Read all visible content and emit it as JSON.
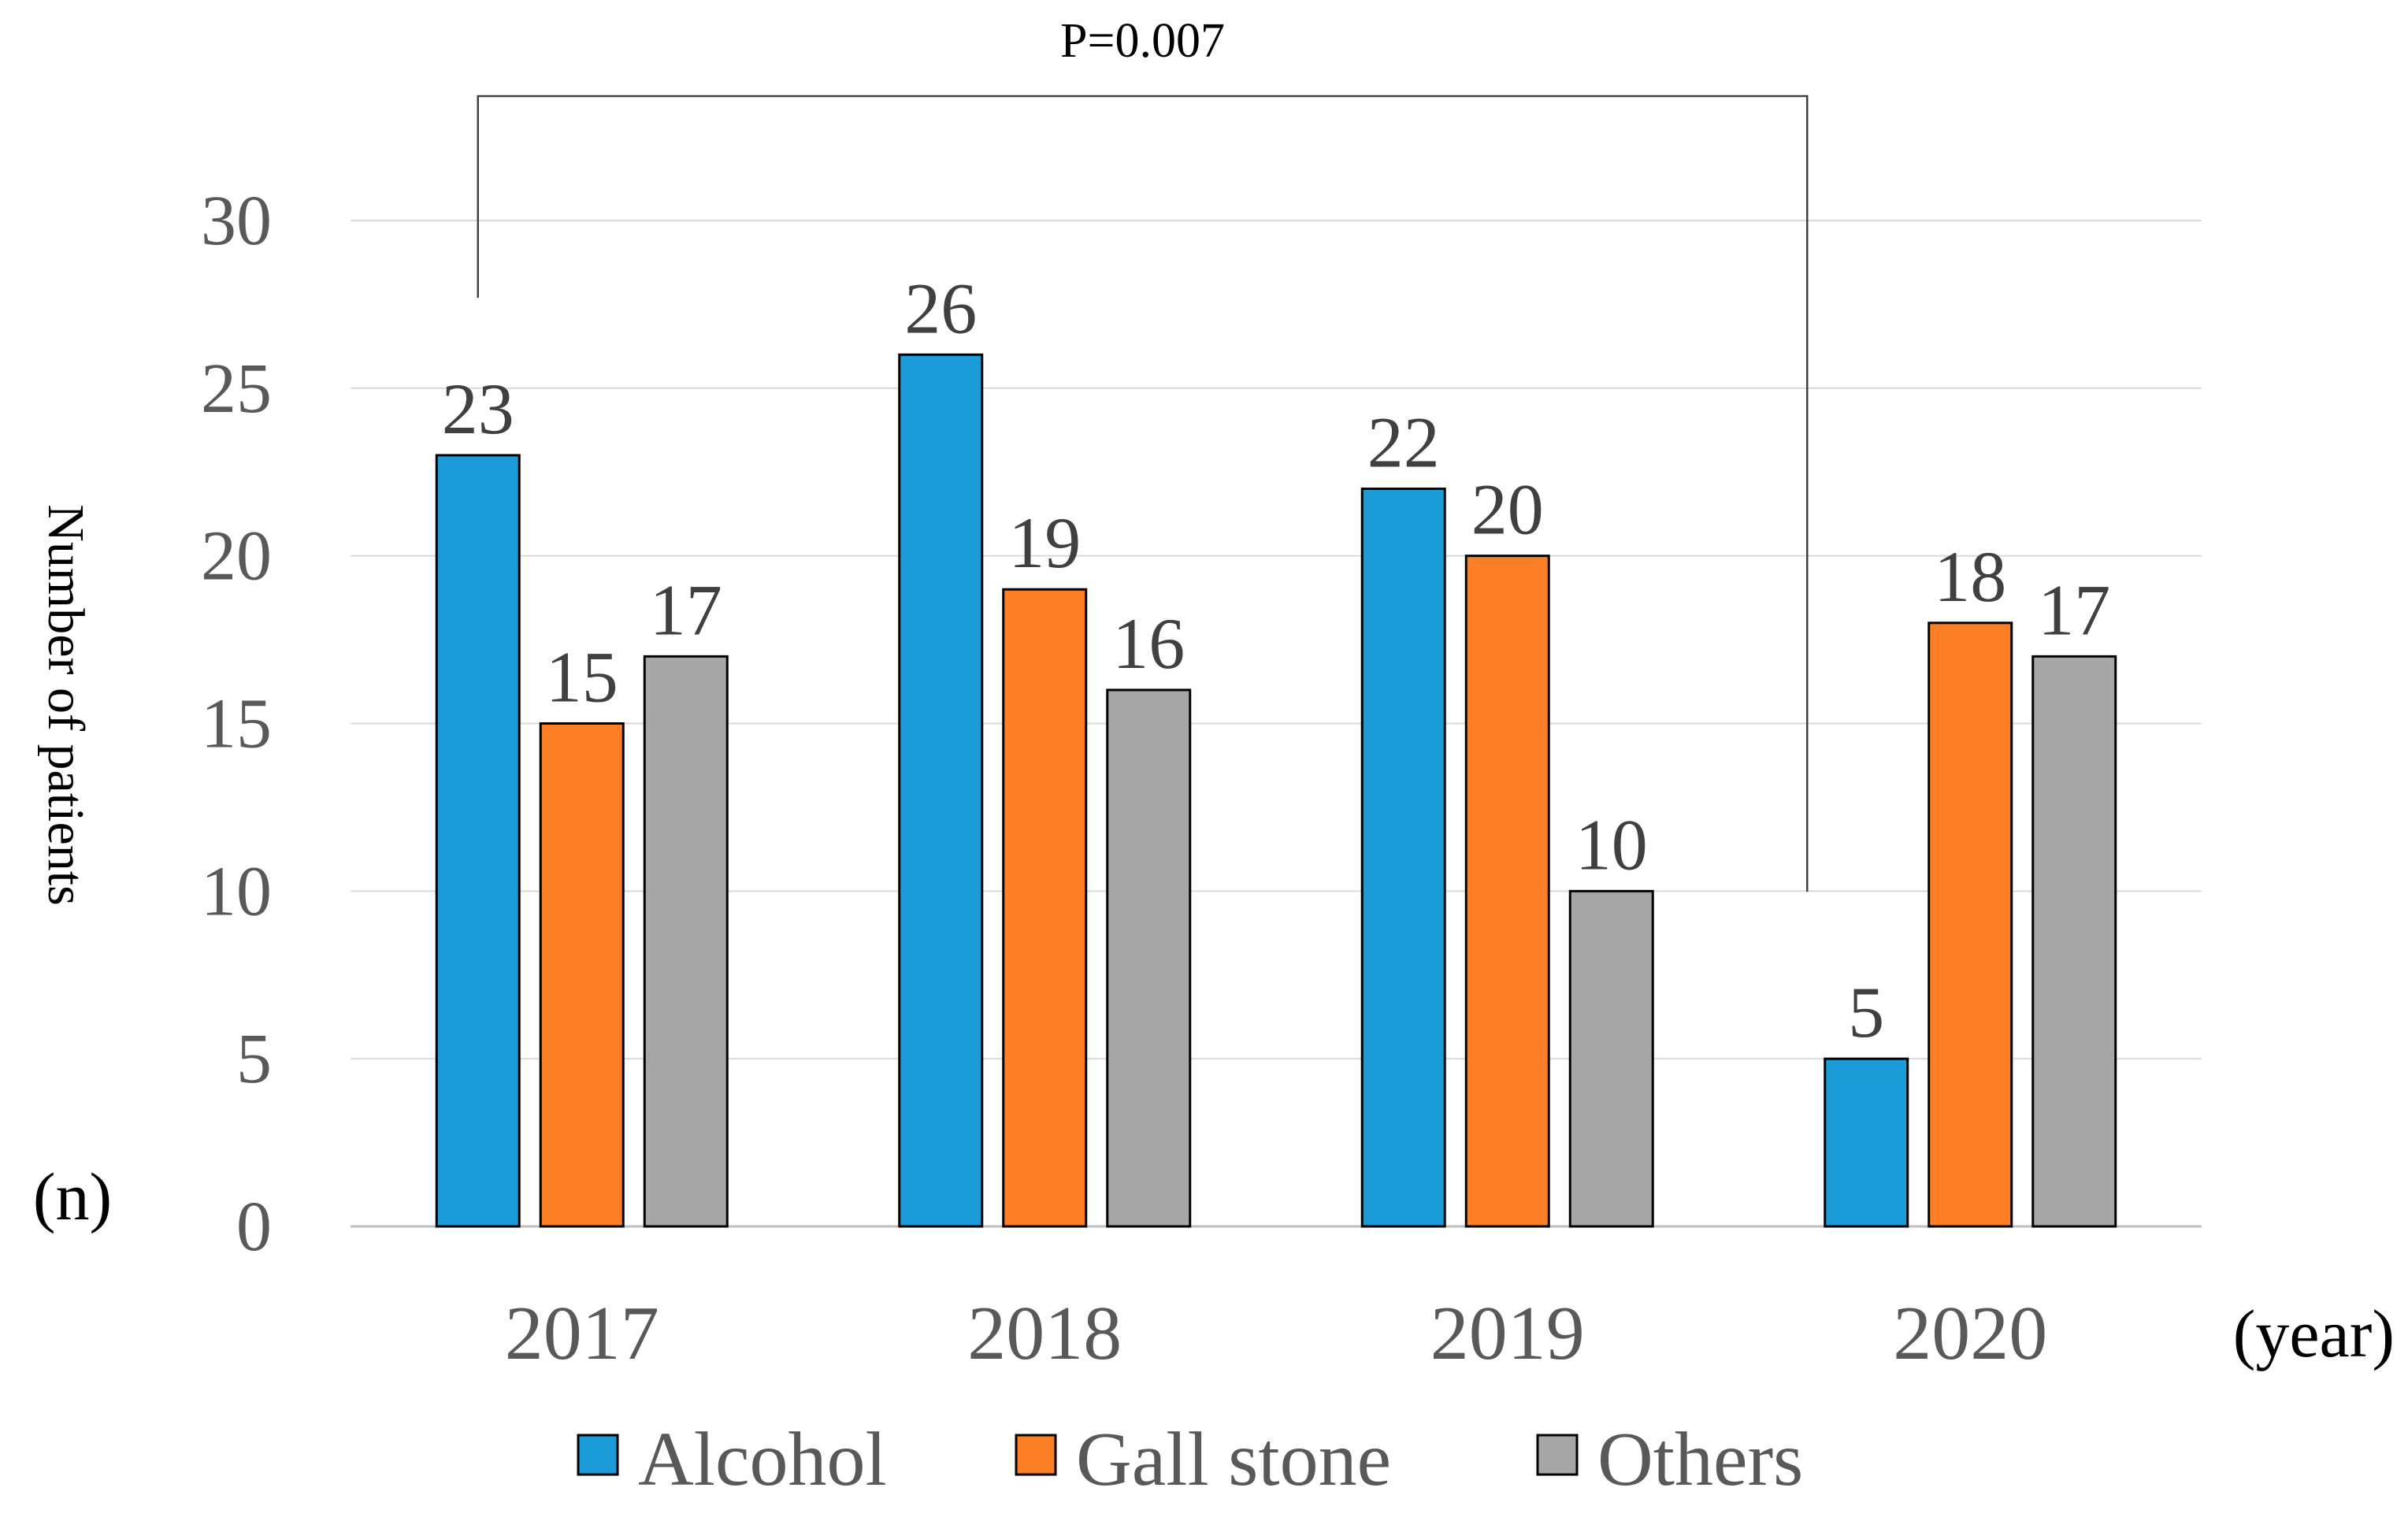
{
  "chart_data": {
    "type": "bar",
    "title": "",
    "xlabel": "",
    "ylabel": "Number of patients",
    "y_unit_label": "(n)",
    "x_unit_label": "(year)",
    "ylim": [
      0,
      30
    ],
    "yticks": [
      0,
      5,
      10,
      15,
      20,
      25,
      30
    ],
    "grid": true,
    "legend_position": "bottom",
    "categories": [
      "2017",
      "2018",
      "2019",
      "2020"
    ],
    "series": [
      {
        "name": "Alcohol",
        "color": "#1b9cd8",
        "values": [
          23,
          26,
          22,
          5
        ]
      },
      {
        "name": "Gall stone",
        "color": "#fd7f25",
        "values": [
          15,
          19,
          20,
          18
        ]
      },
      {
        "name": "Others",
        "color": "#a6a6a6",
        "values": [
          17,
          16,
          10,
          17
        ]
      }
    ],
    "annotation": {
      "text": "P=0.007",
      "from_category": "2017",
      "to_category": "2020",
      "series": "Alcohol"
    }
  }
}
